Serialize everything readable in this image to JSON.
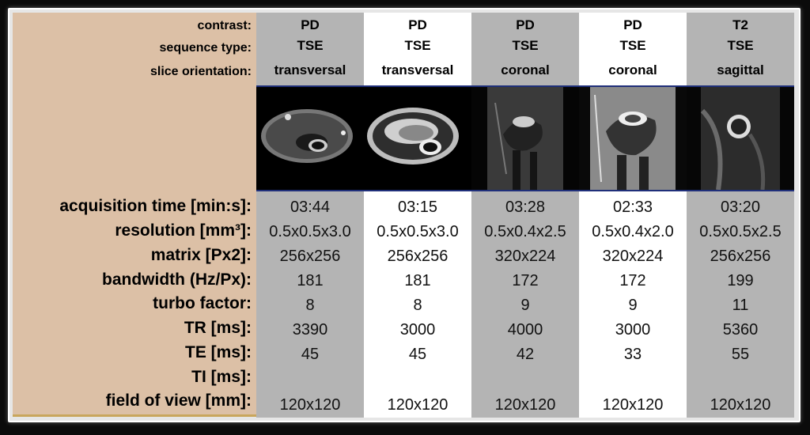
{
  "row_labels": {
    "contrast": "contrast:",
    "sequence_type": "sequence type:",
    "slice_orientation": "slice orientation:",
    "acquisition_time": "acquisition time [min:s]:",
    "resolution": "resolution [mm³]:",
    "matrix": "matrix [Px2]:",
    "bandwidth": "bandwidth (Hz/Px):",
    "turbo_factor": "turbo factor:",
    "tr": "TR [ms]:",
    "te": "TE [ms]:",
    "ti": "TI [ms]:",
    "fov": "field of view [mm]:"
  },
  "columns": [
    {
      "contrast": "PD",
      "sequence": "TSE",
      "orientation": "transversal",
      "image": "transversal slice MRI image",
      "acq_time": "03:44",
      "resolution": "0.5x0.5x3.0",
      "matrix": "256x256",
      "bandwidth": "181",
      "turbo": "8",
      "tr": "3390",
      "te": "45",
      "ti": "",
      "fov": "120x120"
    },
    {
      "contrast": "PD",
      "sequence": "TSE",
      "orientation": "transversal",
      "image": "transversal slice MRI image",
      "acq_time": "03:15",
      "resolution": "0.5x0.5x3.0",
      "matrix": "256x256",
      "bandwidth": "181",
      "turbo": "8",
      "tr": "3000",
      "te": "45",
      "ti": "",
      "fov": "120x120"
    },
    {
      "contrast": "PD",
      "sequence": "TSE",
      "orientation": "coronal",
      "image": "coronal slice MRI image",
      "acq_time": "03:28",
      "resolution": "0.5x0.4x2.5",
      "matrix": "320x224",
      "bandwidth": "172",
      "turbo": "9",
      "tr": "4000",
      "te": "42",
      "ti": "",
      "fov": "120x120"
    },
    {
      "contrast": "PD",
      "sequence": "TSE",
      "orientation": "coronal",
      "image": "coronal slice MRI image",
      "acq_time": "02:33",
      "resolution": "0.5x0.4x2.0",
      "matrix": "320x224",
      "bandwidth": "172",
      "turbo": "9",
      "tr": "3000",
      "te": "33",
      "ti": "",
      "fov": "120x120"
    },
    {
      "contrast": "T2",
      "sequence": "TSE",
      "orientation": "sagittal",
      "image": "sagittal slice MRI image",
      "acq_time": "03:20",
      "resolution": "0.5x0.5x2.5",
      "matrix": "256x256",
      "bandwidth": "199",
      "turbo": "11",
      "tr": "5360",
      "te": "55",
      "ti": "",
      "fov": "120x120"
    }
  ],
  "colors": {
    "label_bg": "#dcc0a6",
    "gray_col": "#b4b4b4",
    "white_col": "#ffffff",
    "thumb_border": "#1f2f7a"
  }
}
